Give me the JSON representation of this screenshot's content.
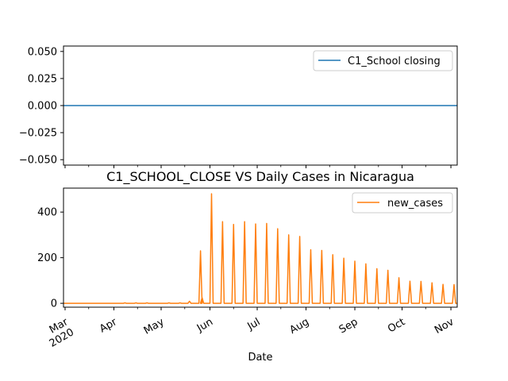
{
  "chart_data": [
    {
      "type": "line",
      "title": "",
      "xlabel": "",
      "ylabel": "",
      "ylim": [
        -0.055,
        0.055
      ],
      "yticks": [
        "0.050",
        "0.025",
        "0.000",
        "−0.025",
        "−0.050"
      ],
      "ytick_values": [
        0.05,
        0.025,
        0.0,
        -0.025,
        -0.05
      ],
      "legend_position": "upper right",
      "series": [
        {
          "name": "C1_School closing",
          "color": "#1f77b4",
          "values": [
            0,
            0
          ]
        }
      ],
      "x": [
        "2020-02-29",
        "2020-11-01"
      ]
    },
    {
      "type": "line",
      "title": "C1_SCHOOL_CLOSE VS Daily Cases in Nicaragua",
      "xlabel": "Date",
      "ylabel": "",
      "ylim": [
        -17,
        505
      ],
      "yticks": [
        "400",
        "200",
        "0"
      ],
      "ytick_values": [
        400,
        200,
        0
      ],
      "xtick_labels": [
        "Mar\n2020",
        "Apr",
        "May",
        "Jun",
        "Jul",
        "Aug",
        "Sep",
        "Oct",
        "Nov"
      ],
      "xtick_dates": [
        "2020-03-01",
        "2020-04-01",
        "2020-05-01",
        "2020-06-01",
        "2020-07-01",
        "2020-08-01",
        "2020-09-01",
        "2020-10-01",
        "2020-11-01"
      ],
      "legend_position": "upper right",
      "series": [
        {
          "name": "new_cases",
          "color": "#ff7f0e",
          "spikes": [
            {
              "date": "2020-04-08",
              "value": 2
            },
            {
              "date": "2020-04-15",
              "value": 2
            },
            {
              "date": "2020-04-22",
              "value": 2
            },
            {
              "date": "2020-05-06",
              "value": 2
            },
            {
              "date": "2020-05-13",
              "value": 2
            },
            {
              "date": "2020-05-19",
              "value": 9
            },
            {
              "date": "2020-05-26",
              "value": 230
            },
            {
              "date": "2020-05-27",
              "value": 25
            },
            {
              "date": "2020-06-02",
              "value": 480
            },
            {
              "date": "2020-06-09",
              "value": 358
            },
            {
              "date": "2020-06-16",
              "value": 346
            },
            {
              "date": "2020-06-23",
              "value": 358
            },
            {
              "date": "2020-06-30",
              "value": 348
            },
            {
              "date": "2020-07-07",
              "value": 350
            },
            {
              "date": "2020-07-14",
              "value": 327
            },
            {
              "date": "2020-07-21",
              "value": 300
            },
            {
              "date": "2020-07-28",
              "value": 293
            },
            {
              "date": "2020-08-04",
              "value": 235
            },
            {
              "date": "2020-08-11",
              "value": 232
            },
            {
              "date": "2020-08-18",
              "value": 213
            },
            {
              "date": "2020-08-25",
              "value": 198
            },
            {
              "date": "2020-09-01",
              "value": 185
            },
            {
              "date": "2020-09-08",
              "value": 173
            },
            {
              "date": "2020-09-15",
              "value": 152
            },
            {
              "date": "2020-09-22",
              "value": 145
            },
            {
              "date": "2020-09-29",
              "value": 112
            },
            {
              "date": "2020-10-06",
              "value": 97
            },
            {
              "date": "2020-10-13",
              "value": 96
            },
            {
              "date": "2020-10-20",
              "value": 90
            },
            {
              "date": "2020-10-27",
              "value": 83
            },
            {
              "date": "2020-11-03",
              "value": 82
            }
          ]
        }
      ],
      "x_range": [
        "2020-02-29",
        "2020-11-05"
      ]
    }
  ]
}
